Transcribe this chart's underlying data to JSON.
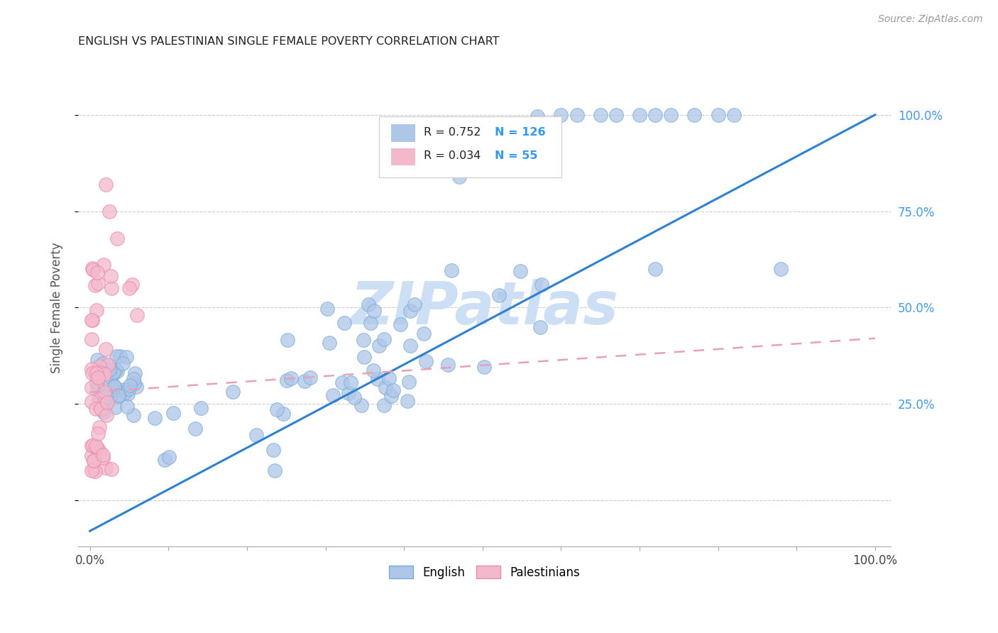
{
  "title": "ENGLISH VS PALESTINIAN SINGLE FEMALE POVERTY CORRELATION CHART",
  "source": "Source: ZipAtlas.com",
  "ylabel": "Single Female Poverty",
  "english_color": "#aec6e8",
  "english_edge_color": "#7aadd4",
  "palestinian_color": "#f4b8cb",
  "palestinian_edge_color": "#e88aaa",
  "english_line_color": "#3080d0",
  "palestinian_line_color": "#e8a0b8",
  "english_r": 0.752,
  "english_n": 126,
  "palestinian_r": 0.034,
  "palestinian_n": 55,
  "watermark_color": "#ccdff5",
  "ytick_color": "#4499ee",
  "title_color": "#222222",
  "legend_r_n_color": "#3399ee",
  "source_color": "#999999"
}
